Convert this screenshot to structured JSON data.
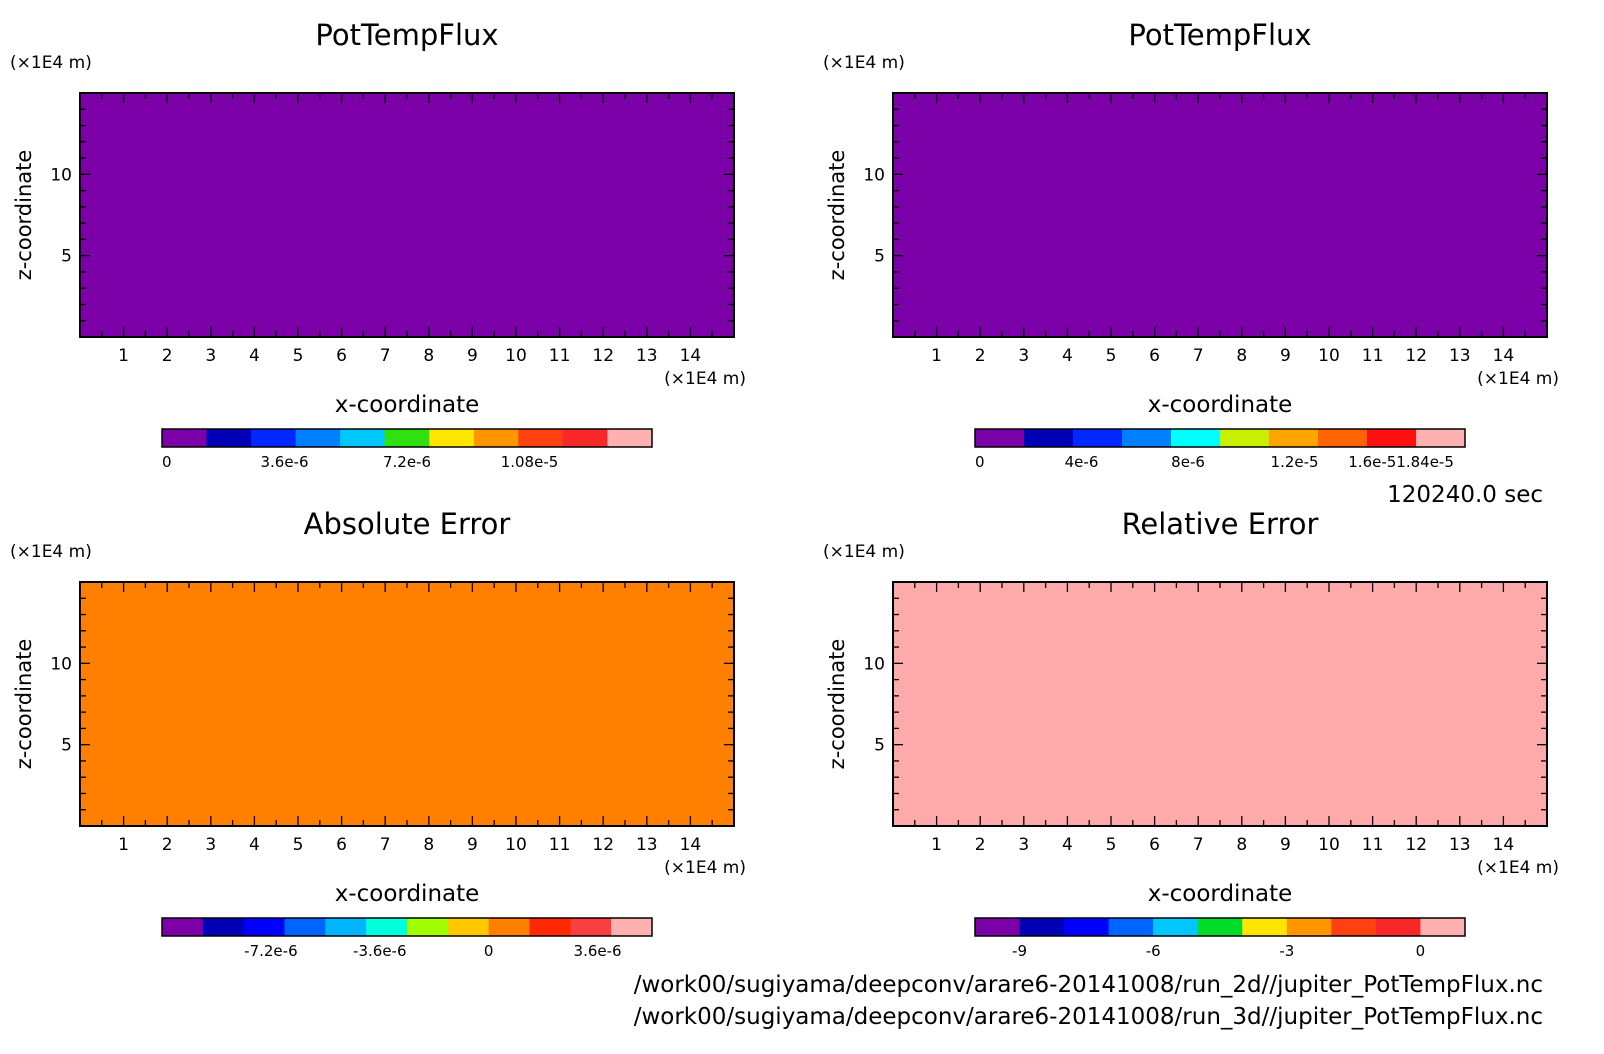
{
  "time_label": "120240.0 sec",
  "file_paths": [
    "/work00/sugiyama/deepconv/arare6-20141008/run_2d//jupiter_PotTempFlux.nc",
    "/work00/sugiyama/deepconv/arare6-20141008/run_3d//jupiter_PotTempFlux.nc"
  ],
  "chart_data": [
    {
      "type": "heatmap",
      "title": "PotTempFlux",
      "xlabel": "x-coordinate",
      "ylabel": "z-coordinate",
      "x_unit": "(×1E4 m)",
      "y_unit": "(×1E4 m)",
      "xlim": [
        0,
        15
      ],
      "ylim": [
        0,
        15
      ],
      "x_ticks": [
        "1",
        "2",
        "3",
        "4",
        "5",
        "6",
        "7",
        "8",
        "9",
        "10",
        "11",
        "12",
        "13",
        "14"
      ],
      "y_ticks": [
        "5",
        "10"
      ],
      "field_color": "#7c00a8",
      "colorbar": {
        "colors": [
          "#7c00a8",
          "#0000b4",
          "#0028ff",
          "#0080ff",
          "#00c8ff",
          "#30e010",
          "#ffe600",
          "#ff9600",
          "#ff4010",
          "#f82828",
          "#ffb0b0"
        ],
        "labels": [
          {
            "text": "0",
            "value": 0
          },
          {
            "text": "3.6e-6",
            "value": 3.6e-06
          },
          {
            "text": "7.2e-6",
            "value": 7.2e-06
          },
          {
            "text": "1.08e-5",
            "value": 1.08e-05
          }
        ],
        "range": [
          0,
          1.44e-05
        ]
      }
    },
    {
      "type": "heatmap",
      "title": "PotTempFlux",
      "xlabel": "x-coordinate",
      "ylabel": "z-coordinate",
      "x_unit": "(×1E4 m)",
      "y_unit": "(×1E4 m)",
      "xlim": [
        0,
        15
      ],
      "ylim": [
        0,
        15
      ],
      "x_ticks": [
        "1",
        "2",
        "3",
        "4",
        "5",
        "6",
        "7",
        "8",
        "9",
        "10",
        "11",
        "12",
        "13",
        "14"
      ],
      "y_ticks": [
        "5",
        "10"
      ],
      "field_color": "#7c00a8",
      "colorbar": {
        "colors": [
          "#7c00a8",
          "#0000b4",
          "#0028ff",
          "#0080ff",
          "#00ffff",
          "#c8f000",
          "#ffa500",
          "#ff6400",
          "#ff1010",
          "#ffb0b0"
        ],
        "labels": [
          {
            "text": "0",
            "value": 0
          },
          {
            "text": "4e-6",
            "value": 4e-06
          },
          {
            "text": "8e-6",
            "value": 8e-06
          },
          {
            "text": "1.2e-5",
            "value": 1.2e-05
          },
          {
            "text": "1.6e-51.84e-5",
            "value": 1.6e-05
          }
        ],
        "range": [
          0,
          1.84e-05
        ]
      }
    },
    {
      "type": "heatmap",
      "title": "Absolute Error",
      "xlabel": "x-coordinate",
      "ylabel": "z-coordinate",
      "x_unit": "(×1E4 m)",
      "y_unit": "(×1E4 m)",
      "xlim": [
        0,
        15
      ],
      "ylim": [
        0,
        15
      ],
      "x_ticks": [
        "1",
        "2",
        "3",
        "4",
        "5",
        "6",
        "7",
        "8",
        "9",
        "10",
        "11",
        "12",
        "13",
        "14"
      ],
      "y_ticks": [
        "5",
        "10"
      ],
      "field_color": "#ff8000",
      "colorbar": {
        "colors": [
          "#7c00a8",
          "#0000b4",
          "#0000ff",
          "#0064ff",
          "#00b4ff",
          "#00ffdc",
          "#a0ff00",
          "#ffc800",
          "#ff8000",
          "#ff2800",
          "#f84040",
          "#ffb0b0"
        ],
        "labels": [
          {
            "text": "-7.2e-6",
            "value": -7.2e-06
          },
          {
            "text": "-3.6e-6",
            "value": -3.6e-06
          },
          {
            "text": "0",
            "value": 0
          },
          {
            "text": "3.6e-6",
            "value": 3.6e-06
          }
        ],
        "range": [
          -1.08e-05,
          5.4e-06
        ]
      }
    },
    {
      "type": "heatmap",
      "title": "Relative Error",
      "xlabel": "x-coordinate",
      "ylabel": "z-coordinate",
      "x_unit": "(×1E4 m)",
      "y_unit": "(×1E4 m)",
      "xlim": [
        0,
        15
      ],
      "ylim": [
        0,
        15
      ],
      "x_ticks": [
        "1",
        "2",
        "3",
        "4",
        "5",
        "6",
        "7",
        "8",
        "9",
        "10",
        "11",
        "12",
        "13",
        "14"
      ],
      "y_ticks": [
        "5",
        "10"
      ],
      "field_color": "#ffaaaa",
      "colorbar": {
        "colors": [
          "#7c00a8",
          "#0000b4",
          "#0000ff",
          "#0064ff",
          "#00c8ff",
          "#00dc28",
          "#ffe600",
          "#ff9600",
          "#ff4010",
          "#f82828",
          "#ffb0b0"
        ],
        "labels": [
          {
            "text": "-9",
            "value": -9
          },
          {
            "text": "-6",
            "value": -6
          },
          {
            "text": "-3",
            "value": -3
          },
          {
            "text": "0",
            "value": 0
          }
        ],
        "range": [
          -10,
          1
        ]
      }
    }
  ]
}
